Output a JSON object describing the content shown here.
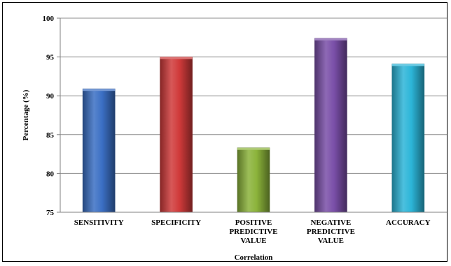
{
  "chart_data": {
    "type": "bar",
    "categories": [
      [
        "SENSITIVITY"
      ],
      [
        "SPECIFICITY"
      ],
      [
        "POSITIVE",
        "PREDICTIVE",
        "VALUE"
      ],
      [
        "NEGATIVE",
        "PREDICTIVE",
        "VALUE"
      ],
      [
        "ACCURACY"
      ]
    ],
    "values": [
      90.9,
      95.0,
      83.3,
      97.4,
      94.1
    ],
    "colors": [
      "#3b6fc4",
      "#d03a3a",
      "#8bb33a",
      "#7a4fa8",
      "#2cb5d8"
    ],
    "xlabel": "Correlation",
    "ylabel": "Percentage (%)",
    "ylim": [
      75,
      100
    ],
    "yticks": [
      75,
      80,
      85,
      90,
      95,
      100
    ],
    "grid": true,
    "legend": "none"
  }
}
